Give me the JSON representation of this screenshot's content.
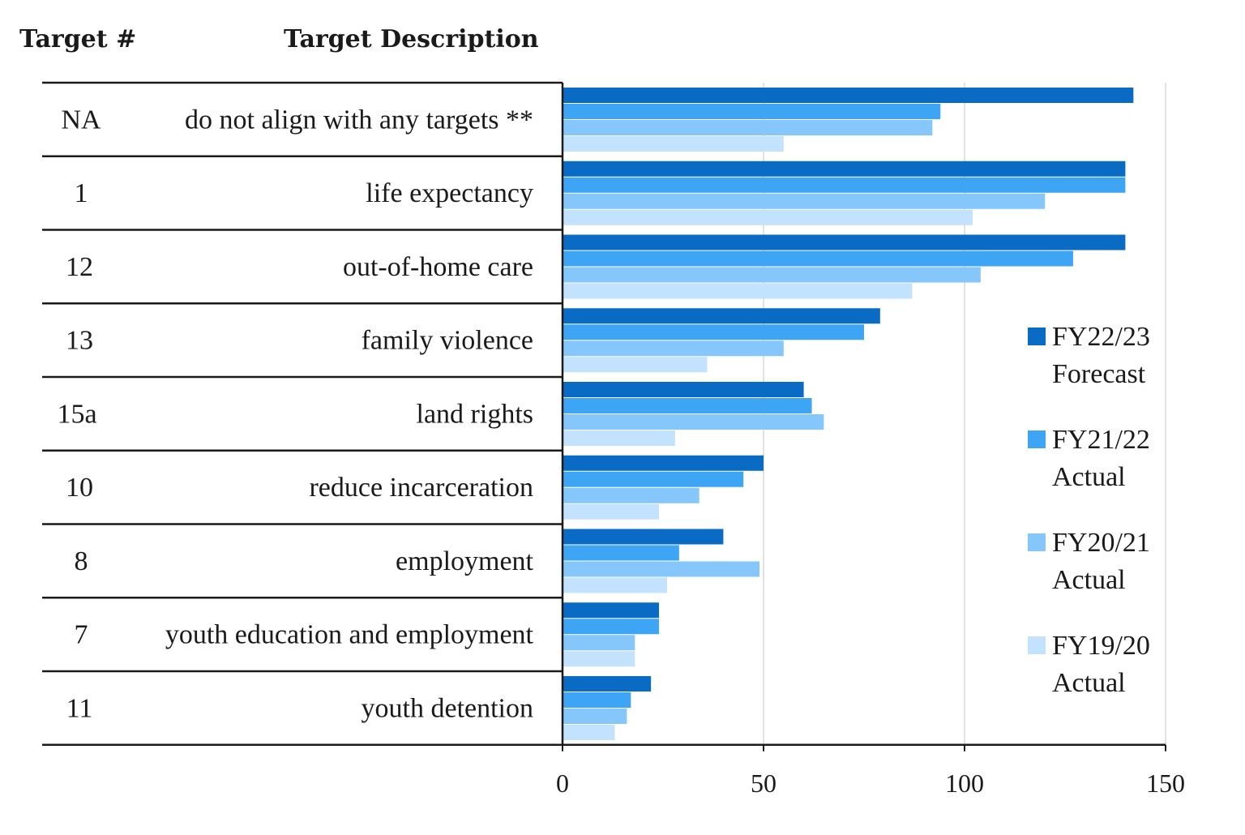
{
  "headers": {
    "target_num": "Target #",
    "target_desc": "Target Description"
  },
  "chart_data": {
    "type": "bar",
    "orientation": "horizontal",
    "categories": [
      {
        "num": "NA",
        "desc": "do not align with any targets **"
      },
      {
        "num": "1",
        "desc": "life expectancy"
      },
      {
        "num": "12",
        "desc": "out-of-home care"
      },
      {
        "num": "13",
        "desc": "family violence"
      },
      {
        "num": "15a",
        "desc": "land rights"
      },
      {
        "num": "10",
        "desc": "reduce incarceration"
      },
      {
        "num": "8",
        "desc": "employment"
      },
      {
        "num": "7",
        "desc": "youth education and employment"
      },
      {
        "num": "11",
        "desc": "youth detention"
      }
    ],
    "series": [
      {
        "name": "FY22/23 Forecast",
        "legend_lines": [
          "FY22/23",
          "Forecast"
        ],
        "color": "#0a6bc4",
        "values": [
          142,
          140,
          140,
          79,
          60,
          50,
          40,
          24,
          22
        ]
      },
      {
        "name": "FY21/22 Actual",
        "legend_lines": [
          "FY21/22",
          "Actual"
        ],
        "color": "#3ea5f5",
        "values": [
          94,
          140,
          127,
          75,
          62,
          45,
          29,
          24,
          17
        ]
      },
      {
        "name": "FY20/21 Actual",
        "legend_lines": [
          "FY20/21",
          "Actual"
        ],
        "color": "#85c6fb",
        "values": [
          92,
          120,
          104,
          55,
          65,
          34,
          49,
          18,
          16
        ]
      },
      {
        "name": "FY19/20 Actual",
        "legend_lines": [
          "FY19/20",
          "Actual"
        ],
        "color": "#c3e2fd",
        "values": [
          55,
          102,
          87,
          36,
          28,
          24,
          26,
          18,
          13
        ]
      }
    ],
    "xlim": [
      0,
      150
    ],
    "xticks": [
      0,
      50,
      100,
      150
    ],
    "grid": true,
    "legend_position": "right"
  }
}
